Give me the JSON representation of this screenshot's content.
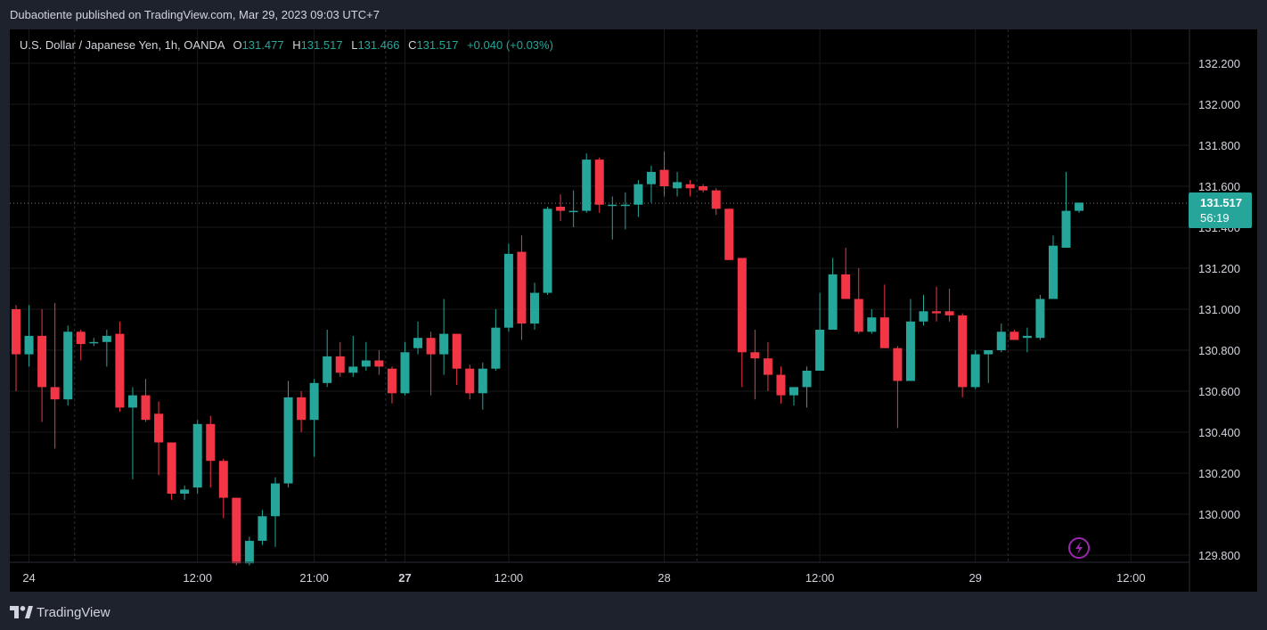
{
  "header": {
    "publish_note": "Dubaotiente published on TradingView.com, Mar 29, 2023 09:03 UTC+7"
  },
  "legend": {
    "symbol": "U.S. Dollar / Japanese Yen, 1h, OANDA",
    "open_label": "O",
    "open_value": "131.477",
    "high_label": "H",
    "high_value": "131.517",
    "low_label": "L",
    "low_value": "131.466",
    "close_label": "C",
    "close_value": "131.517",
    "change": "+0.040 (+0.03%)"
  },
  "price_tag": {
    "price": "131.517",
    "countdown": "56:19"
  },
  "footer": {
    "brand": "TradingView"
  },
  "colors": {
    "up": "#26a69a",
    "down": "#f23645",
    "background": "#000000",
    "frame": "#1e222d",
    "grid": "#1a1a1a",
    "text": "#d1d4dc",
    "alert_icon": "#9c27b0"
  },
  "chart_data": {
    "type": "candlestick",
    "title": "U.S. Dollar / Japanese Yen, 1h, OANDA",
    "ylim": [
      129.75,
      132.3
    ],
    "y_ticks": [
      "132.200",
      "132.000",
      "131.800",
      "131.600",
      "131.400",
      "131.200",
      "131.000",
      "130.800",
      "130.600",
      "130.400",
      "130.200",
      "130.000",
      "129.800"
    ],
    "x_ticks": [
      {
        "label": "24",
        "index": 1,
        "bold": false
      },
      {
        "label": "12:00",
        "index": 14,
        "bold": false
      },
      {
        "label": "21:00",
        "index": 23,
        "bold": false
      },
      {
        "label": "27",
        "index": 30,
        "bold": true
      },
      {
        "label": "12:00",
        "index": 38,
        "bold": false
      },
      {
        "label": "28",
        "index": 50,
        "bold": false
      },
      {
        "label": "12:00",
        "index": 62,
        "bold": false
      },
      {
        "label": "29",
        "index": 74,
        "bold": false
      },
      {
        "label": "12:00",
        "index": 86,
        "bold": false
      }
    ],
    "day_separators": [
      5,
      29,
      53,
      77
    ],
    "last_price": 131.517,
    "candles": [
      {
        "o": 131.0,
        "h": 131.02,
        "l": 130.6,
        "c": 130.78
      },
      {
        "o": 130.78,
        "h": 131.02,
        "l": 130.72,
        "c": 130.87
      },
      {
        "o": 130.87,
        "h": 131.0,
        "l": 130.45,
        "c": 130.62
      },
      {
        "o": 130.62,
        "h": 131.03,
        "l": 130.32,
        "c": 130.56
      },
      {
        "o": 130.56,
        "h": 130.92,
        "l": 130.53,
        "c": 130.89
      },
      {
        "o": 130.89,
        "h": 130.9,
        "l": 130.75,
        "c": 130.83
      },
      {
        "o": 130.84,
        "h": 130.86,
        "l": 130.82,
        "c": 130.84
      },
      {
        "o": 130.84,
        "h": 130.9,
        "l": 130.72,
        "c": 130.87
      },
      {
        "o": 130.88,
        "h": 130.94,
        "l": 130.5,
        "c": 130.52
      },
      {
        "o": 130.52,
        "h": 130.62,
        "l": 130.17,
        "c": 130.58
      },
      {
        "o": 130.58,
        "h": 130.66,
        "l": 130.45,
        "c": 130.46
      },
      {
        "o": 130.49,
        "h": 130.55,
        "l": 130.19,
        "c": 130.35
      },
      {
        "o": 130.35,
        "h": 130.35,
        "l": 130.07,
        "c": 130.1
      },
      {
        "o": 130.1,
        "h": 130.14,
        "l": 130.07,
        "c": 130.12
      },
      {
        "o": 130.13,
        "h": 130.46,
        "l": 130.1,
        "c": 130.44
      },
      {
        "o": 130.44,
        "h": 130.48,
        "l": 130.13,
        "c": 130.26
      },
      {
        "o": 130.26,
        "h": 130.27,
        "l": 129.98,
        "c": 130.08
      },
      {
        "o": 130.08,
        "h": 130.08,
        "l": 129.75,
        "c": 129.76
      },
      {
        "o": 129.76,
        "h": 129.89,
        "l": 129.75,
        "c": 129.87
      },
      {
        "o": 129.87,
        "h": 130.02,
        "l": 129.85,
        "c": 129.99
      },
      {
        "o": 129.99,
        "h": 130.18,
        "l": 129.84,
        "c": 130.15
      },
      {
        "o": 130.15,
        "h": 130.65,
        "l": 130.13,
        "c": 130.57
      },
      {
        "o": 130.57,
        "h": 130.6,
        "l": 130.4,
        "c": 130.46
      },
      {
        "o": 130.46,
        "h": 130.66,
        "l": 130.28,
        "c": 130.64
      },
      {
        "o": 130.64,
        "h": 130.9,
        "l": 130.62,
        "c": 130.77
      },
      {
        "o": 130.77,
        "h": 130.84,
        "l": 130.67,
        "c": 130.69
      },
      {
        "o": 130.69,
        "h": 130.87,
        "l": 130.67,
        "c": 130.72
      },
      {
        "o": 130.72,
        "h": 130.84,
        "l": 130.7,
        "c": 130.75
      },
      {
        "o": 130.75,
        "h": 130.8,
        "l": 130.68,
        "c": 130.72
      },
      {
        "o": 130.71,
        "h": 130.72,
        "l": 130.54,
        "c": 130.59
      },
      {
        "o": 130.59,
        "h": 130.84,
        "l": 130.58,
        "c": 130.79
      },
      {
        "o": 130.81,
        "h": 130.94,
        "l": 130.78,
        "c": 130.86
      },
      {
        "o": 130.86,
        "h": 130.89,
        "l": 130.58,
        "c": 130.78
      },
      {
        "o": 130.78,
        "h": 131.05,
        "l": 130.68,
        "c": 130.88
      },
      {
        "o": 130.88,
        "h": 130.88,
        "l": 130.63,
        "c": 130.71
      },
      {
        "o": 130.71,
        "h": 130.73,
        "l": 130.56,
        "c": 130.59
      },
      {
        "o": 130.59,
        "h": 130.74,
        "l": 130.51,
        "c": 130.71
      },
      {
        "o": 130.71,
        "h": 131.0,
        "l": 130.7,
        "c": 130.91
      },
      {
        "o": 130.91,
        "h": 131.32,
        "l": 130.89,
        "c": 131.27
      },
      {
        "o": 131.28,
        "h": 131.36,
        "l": 130.85,
        "c": 130.93
      },
      {
        "o": 130.93,
        "h": 131.13,
        "l": 130.9,
        "c": 131.08
      },
      {
        "o": 131.08,
        "h": 131.5,
        "l": 131.07,
        "c": 131.49
      },
      {
        "o": 131.5,
        "h": 131.56,
        "l": 131.43,
        "c": 131.48
      },
      {
        "o": 131.48,
        "h": 131.58,
        "l": 131.4,
        "c": 131.48
      },
      {
        "o": 131.48,
        "h": 131.76,
        "l": 131.47,
        "c": 131.73
      },
      {
        "o": 131.73,
        "h": 131.74,
        "l": 131.47,
        "c": 131.51
      },
      {
        "o": 131.51,
        "h": 131.55,
        "l": 131.34,
        "c": 131.51
      },
      {
        "o": 131.51,
        "h": 131.57,
        "l": 131.39,
        "c": 131.51
      },
      {
        "o": 131.51,
        "h": 131.63,
        "l": 131.45,
        "c": 131.61
      },
      {
        "o": 131.61,
        "h": 131.7,
        "l": 131.52,
        "c": 131.67
      },
      {
        "o": 131.68,
        "h": 131.77,
        "l": 131.55,
        "c": 131.6
      },
      {
        "o": 131.59,
        "h": 131.67,
        "l": 131.55,
        "c": 131.62
      },
      {
        "o": 131.61,
        "h": 131.63,
        "l": 131.55,
        "c": 131.59
      },
      {
        "o": 131.6,
        "h": 131.61,
        "l": 131.57,
        "c": 131.58
      },
      {
        "o": 131.58,
        "h": 131.59,
        "l": 131.46,
        "c": 131.49
      },
      {
        "o": 131.49,
        "h": 131.49,
        "l": 131.24,
        "c": 131.24
      },
      {
        "o": 131.25,
        "h": 131.25,
        "l": 130.62,
        "c": 130.79
      },
      {
        "o": 130.79,
        "h": 130.9,
        "l": 130.56,
        "c": 130.76
      },
      {
        "o": 130.76,
        "h": 130.84,
        "l": 130.6,
        "c": 130.68
      },
      {
        "o": 130.68,
        "h": 130.72,
        "l": 130.54,
        "c": 130.58
      },
      {
        "o": 130.58,
        "h": 130.62,
        "l": 130.53,
        "c": 130.62
      },
      {
        "o": 130.62,
        "h": 130.72,
        "l": 130.52,
        "c": 130.7
      },
      {
        "o": 130.7,
        "h": 131.08,
        "l": 130.7,
        "c": 130.9
      },
      {
        "o": 130.9,
        "h": 131.25,
        "l": 130.9,
        "c": 131.17
      },
      {
        "o": 131.17,
        "h": 131.3,
        "l": 131.06,
        "c": 131.05
      },
      {
        "o": 131.05,
        "h": 131.2,
        "l": 130.88,
        "c": 130.89
      },
      {
        "o": 130.89,
        "h": 131.0,
        "l": 130.88,
        "c": 130.96
      },
      {
        "o": 130.96,
        "h": 131.12,
        "l": 130.81,
        "c": 130.81
      },
      {
        "o": 130.81,
        "h": 130.82,
        "l": 130.42,
        "c": 130.65
      },
      {
        "o": 130.65,
        "h": 131.05,
        "l": 130.65,
        "c": 130.94
      },
      {
        "o": 130.94,
        "h": 131.07,
        "l": 130.92,
        "c": 130.99
      },
      {
        "o": 130.99,
        "h": 131.11,
        "l": 130.94,
        "c": 130.98
      },
      {
        "o": 130.99,
        "h": 131.1,
        "l": 130.94,
        "c": 130.97
      },
      {
        "o": 130.97,
        "h": 130.98,
        "l": 130.57,
        "c": 130.62
      },
      {
        "o": 130.62,
        "h": 130.8,
        "l": 130.61,
        "c": 130.78
      },
      {
        "o": 130.78,
        "h": 130.8,
        "l": 130.64,
        "c": 130.8
      },
      {
        "o": 130.8,
        "h": 130.93,
        "l": 130.79,
        "c": 130.89
      },
      {
        "o": 130.89,
        "h": 130.9,
        "l": 130.85,
        "c": 130.85
      },
      {
        "o": 130.86,
        "h": 130.91,
        "l": 130.79,
        "c": 130.87
      },
      {
        "o": 130.86,
        "h": 131.07,
        "l": 130.85,
        "c": 131.05
      },
      {
        "o": 131.05,
        "h": 131.36,
        "l": 131.05,
        "c": 131.31
      },
      {
        "o": 131.3,
        "h": 131.67,
        "l": 131.3,
        "c": 131.48
      },
      {
        "o": 131.48,
        "h": 131.52,
        "l": 131.47,
        "c": 131.52
      }
    ]
  }
}
